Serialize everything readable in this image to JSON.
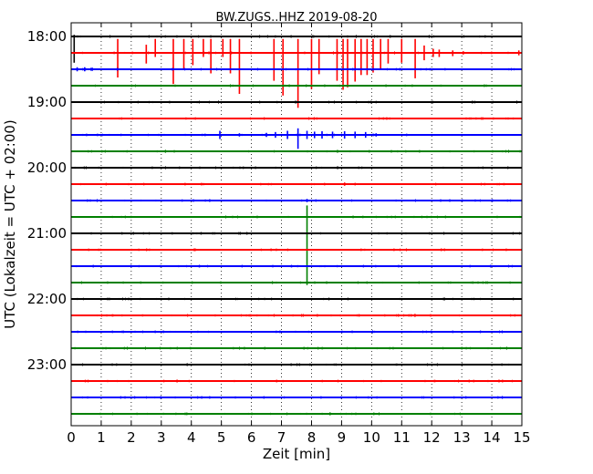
{
  "chart_data": {
    "type": "line",
    "title": "BW.ZUGS..HHZ 2019-08-20",
    "xlabel": "Zeit  [min]",
    "ylabel": "UTC (Lokalzeit = UTC + 02:00)",
    "xlim": [
      0,
      15
    ],
    "x_ticks": [
      0,
      1,
      2,
      3,
      4,
      5,
      6,
      7,
      8,
      9,
      10,
      11,
      12,
      13,
      14,
      15
    ],
    "x_tick_labels": [
      "0",
      "1",
      "2",
      "3",
      "4",
      "5",
      "6",
      "7",
      "8",
      "9",
      "10",
      "11",
      "12",
      "13",
      "14",
      "15"
    ],
    "y_tick_labels": [
      "18:00",
      "19:00",
      "20:00",
      "21:00",
      "22:00",
      "23:00"
    ],
    "grid": true,
    "traces_per_hour": 4,
    "trace_colors": [
      "#000000",
      "#ff0000",
      "#0000ff",
      "#008000"
    ],
    "series": [
      {
        "start": "18:00",
        "events": [
          {
            "t": 0.1,
            "up": 0.2,
            "down": 3.2
          }
        ]
      },
      {
        "start": "18:15",
        "events": [
          {
            "t": 1.55,
            "up": 1.7,
            "down": 3.0
          },
          {
            "t": 2.5,
            "up": 1.0,
            "down": 1.3
          },
          {
            "t": 2.8,
            "up": 1.7,
            "down": 0.5
          },
          {
            "t": 3.4,
            "up": 1.7,
            "down": 3.8
          },
          {
            "t": 3.75,
            "up": 1.7,
            "down": 2.0
          },
          {
            "t": 4.05,
            "up": 1.7,
            "down": 1.5
          },
          {
            "t": 4.4,
            "up": 1.7,
            "down": 0.5
          },
          {
            "t": 4.65,
            "up": 1.7,
            "down": 2.5
          },
          {
            "t": 5.05,
            "up": 1.7,
            "down": 0.5
          },
          {
            "t": 5.3,
            "up": 1.7,
            "down": 2.5
          },
          {
            "t": 5.6,
            "up": 1.7,
            "down": 5.0
          },
          {
            "t": 6.75,
            "up": 1.7,
            "down": 3.4
          },
          {
            "t": 7.05,
            "up": 1.7,
            "down": 5.2
          },
          {
            "t": 7.55,
            "up": 1.7,
            "down": 6.7
          },
          {
            "t": 8.0,
            "up": 1.7,
            "down": 4.4
          },
          {
            "t": 8.25,
            "up": 1.7,
            "down": 2.6
          },
          {
            "t": 8.85,
            "up": 1.7,
            "down": 3.4
          },
          {
            "t": 9.05,
            "up": 1.7,
            "down": 4.5
          },
          {
            "t": 9.2,
            "up": 1.7,
            "down": 4.2
          },
          {
            "t": 9.45,
            "up": 1.7,
            "down": 3.5
          },
          {
            "t": 9.65,
            "up": 1.7,
            "down": 2.7
          },
          {
            "t": 9.85,
            "up": 1.7,
            "down": 2.7
          },
          {
            "t": 10.05,
            "up": 1.7,
            "down": 2.4
          },
          {
            "t": 10.3,
            "up": 1.7,
            "down": 2.0
          },
          {
            "t": 10.55,
            "up": 1.7,
            "down": 1.3
          },
          {
            "t": 11.0,
            "up": 1.7,
            "down": 1.2
          },
          {
            "t": 11.45,
            "up": 1.7,
            "down": 3.1
          },
          {
            "t": 11.75,
            "up": 0.9,
            "down": 0.9
          },
          {
            "t": 12.05,
            "up": 0.5,
            "down": 0.5
          },
          {
            "t": 12.25,
            "up": 0.4,
            "down": 0.5
          },
          {
            "t": 12.7,
            "up": 0.3,
            "down": 0.4
          },
          {
            "t": 13.05,
            "up": 0.2,
            "down": 0.2
          },
          {
            "t": 14.9,
            "up": 0.3,
            "down": 0.3
          }
        ]
      },
      {
        "start": "18:30",
        "events": [
          {
            "t": 0.2,
            "up": 0.25,
            "down": 0.25
          },
          {
            "t": 0.45,
            "up": 0.25,
            "down": 0.25
          },
          {
            "t": 0.7,
            "up": 0.2,
            "down": 0.2
          }
        ]
      },
      {
        "start": "18:45",
        "events": []
      },
      {
        "start": "19:00",
        "events": []
      },
      {
        "start": "19:15",
        "events": []
      },
      {
        "start": "19:30",
        "events": [
          {
            "t": 4.95,
            "up": 0.5,
            "down": 0.5
          },
          {
            "t": 5.6,
            "up": 0.2,
            "down": 0.2
          },
          {
            "t": 6.5,
            "up": 0.25,
            "down": 0.25
          },
          {
            "t": 6.8,
            "up": 0.35,
            "down": 0.35
          },
          {
            "t": 7.2,
            "up": 0.5,
            "down": 0.5
          },
          {
            "t": 7.55,
            "up": 0.8,
            "down": 1.7
          },
          {
            "t": 7.85,
            "up": 0.5,
            "down": 0.5
          },
          {
            "t": 8.1,
            "up": 0.4,
            "down": 0.4
          },
          {
            "t": 8.35,
            "up": 0.45,
            "down": 0.45
          },
          {
            "t": 8.7,
            "up": 0.4,
            "down": 0.4
          },
          {
            "t": 9.1,
            "up": 0.45,
            "down": 0.45
          },
          {
            "t": 9.45,
            "up": 0.4,
            "down": 0.4
          },
          {
            "t": 9.8,
            "up": 0.35,
            "down": 0.35
          },
          {
            "t": 10.15,
            "up": 0.2,
            "down": 0.2
          }
        ]
      },
      {
        "start": "19:45",
        "events": []
      },
      {
        "start": "20:00",
        "events": []
      },
      {
        "start": "20:15",
        "events": [
          {
            "t": 9.1,
            "up": 0.2,
            "down": 0.2
          }
        ]
      },
      {
        "start": "20:30",
        "events": [
          {
            "t": 7.85,
            "up": 0.2,
            "down": 0.2
          }
        ]
      },
      {
        "start": "20:45",
        "events": [
          {
            "t": 7.85,
            "up": 1.4,
            "down": 8.3
          }
        ]
      },
      {
        "start": "21:00",
        "events": []
      },
      {
        "start": "21:15",
        "events": []
      },
      {
        "start": "21:30",
        "events": []
      },
      {
        "start": "21:45",
        "events": []
      },
      {
        "start": "22:00",
        "events": []
      },
      {
        "start": "22:15",
        "events": []
      },
      {
        "start": "22:30",
        "events": []
      },
      {
        "start": "22:45",
        "events": []
      },
      {
        "start": "23:00",
        "events": []
      },
      {
        "start": "23:15",
        "events": []
      },
      {
        "start": "23:30",
        "events": []
      },
      {
        "start": "23:45",
        "events": []
      }
    ]
  }
}
